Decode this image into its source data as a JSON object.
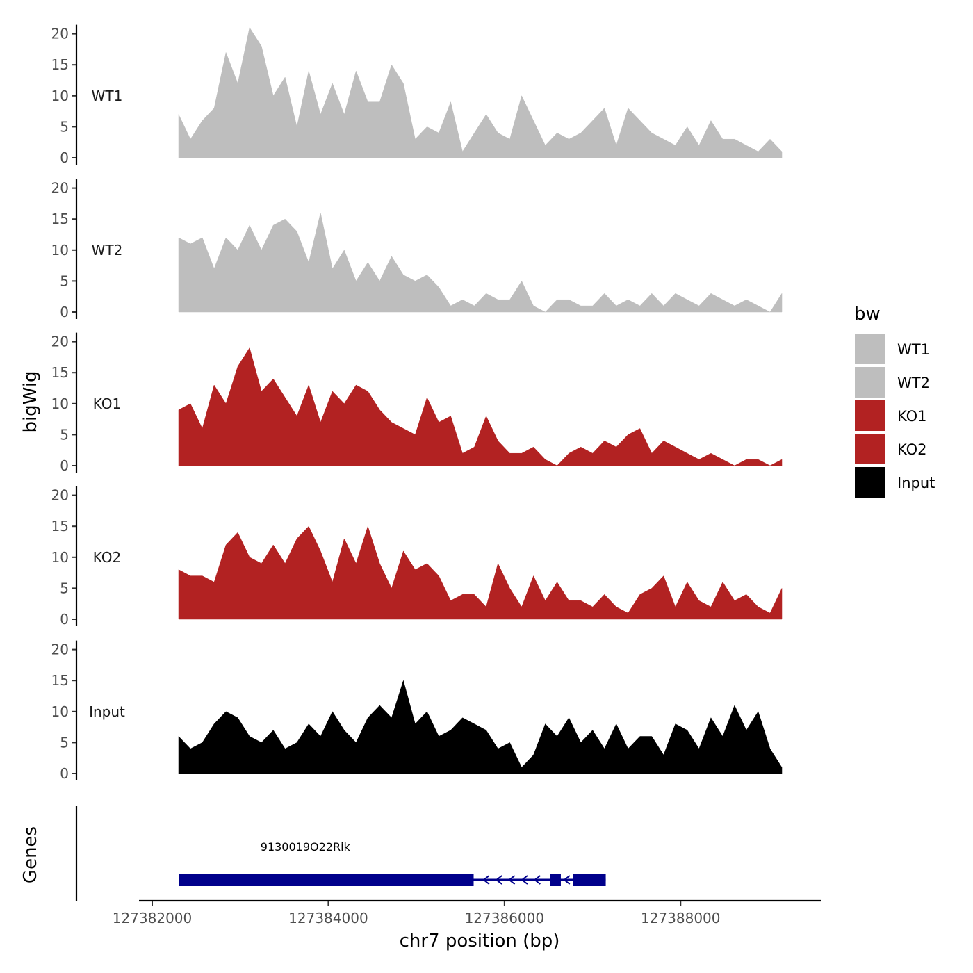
{
  "chart_data": {
    "type": "area",
    "title": "",
    "xlabel": "chr7 position (bp)",
    "ylabel": "bigWig",
    "genes_label": "Genes",
    "xlim": [
      127381850,
      127389600
    ],
    "region": [
      127382300,
      127389150
    ],
    "x_ticks": [
      127382000,
      127384000,
      127386000,
      127388000
    ],
    "x_tick_labels": [
      "127382000",
      "127384000",
      "127386000",
      "127388000"
    ],
    "ylim": [
      0,
      21
    ],
    "y_ticks": [
      0,
      5,
      10,
      15,
      20
    ],
    "y_tick_labels": [
      "0",
      "5",
      "10",
      "15",
      "20"
    ],
    "legend": {
      "title": "bw",
      "entries": [
        {
          "label": "WT1",
          "color": "#bebebe"
        },
        {
          "label": "WT2",
          "color": "#bebebe"
        },
        {
          "label": "KO1",
          "color": "#b22222"
        },
        {
          "label": "KO2",
          "color": "#b22222"
        },
        {
          "label": "Input",
          "color": "#000000"
        }
      ]
    },
    "series": [
      {
        "name": "WT1",
        "color": "#bebebe",
        "values": [
          7,
          3,
          6,
          8,
          17,
          12,
          21,
          18,
          10,
          13,
          5,
          14,
          7,
          12,
          7,
          14,
          9,
          9,
          15,
          12,
          3,
          5,
          4,
          9,
          1,
          4,
          7,
          4,
          3,
          10,
          6,
          2,
          4,
          3,
          4,
          6,
          8,
          2,
          8,
          6,
          4,
          3,
          2,
          5,
          2,
          6,
          3,
          3,
          2,
          1,
          3,
          1
        ]
      },
      {
        "name": "WT2",
        "color": "#bebebe",
        "values": [
          12,
          11,
          12,
          7,
          12,
          10,
          14,
          10,
          14,
          15,
          13,
          8,
          16,
          7,
          10,
          5,
          8,
          5,
          9,
          6,
          5,
          6,
          4,
          1,
          2,
          1,
          3,
          2,
          2,
          5,
          1,
          0,
          2,
          2,
          1,
          1,
          3,
          1,
          2,
          1,
          3,
          1,
          3,
          2,
          1,
          3,
          2,
          1,
          2,
          1,
          0,
          3
        ]
      },
      {
        "name": "KO1",
        "color": "#b22222",
        "values": [
          9,
          10,
          6,
          13,
          10,
          16,
          19,
          12,
          14,
          11,
          8,
          13,
          7,
          12,
          10,
          13,
          12,
          9,
          7,
          6,
          5,
          11,
          7,
          8,
          2,
          3,
          8,
          4,
          2,
          2,
          3,
          1,
          0,
          2,
          3,
          2,
          4,
          3,
          5,
          6,
          2,
          4,
          3,
          2,
          1,
          2,
          1,
          0,
          1,
          1,
          0,
          1
        ]
      },
      {
        "name": "KO2",
        "color": "#b22222",
        "values": [
          8,
          7,
          7,
          6,
          12,
          14,
          10,
          9,
          12,
          9,
          13,
          15,
          11,
          6,
          13,
          9,
          15,
          9,
          5,
          11,
          8,
          9,
          7,
          3,
          4,
          4,
          2,
          9,
          5,
          2,
          7,
          3,
          6,
          3,
          3,
          2,
          4,
          2,
          1,
          4,
          5,
          7,
          2,
          6,
          3,
          2,
          6,
          3,
          4,
          2,
          1,
          5
        ]
      },
      {
        "name": "Input",
        "color": "#000000",
        "values": [
          6,
          4,
          5,
          8,
          10,
          9,
          6,
          5,
          7,
          4,
          5,
          8,
          6,
          10,
          7,
          5,
          9,
          11,
          9,
          15,
          8,
          10,
          6,
          7,
          9,
          8,
          7,
          4,
          5,
          1,
          3,
          8,
          6,
          9,
          5,
          7,
          4,
          8,
          4,
          6,
          6,
          3,
          8,
          7,
          4,
          9,
          6,
          11,
          7,
          10,
          4,
          1
        ]
      }
    ],
    "gene_track": {
      "gene_name": "9130019O22Rik",
      "strand": "-",
      "start": 127382300,
      "end": 127387150,
      "exons": [
        [
          127382300,
          127385650
        ],
        [
          127386520,
          127386640
        ],
        [
          127386780,
          127387150
        ]
      ],
      "color": "#00008b"
    }
  }
}
